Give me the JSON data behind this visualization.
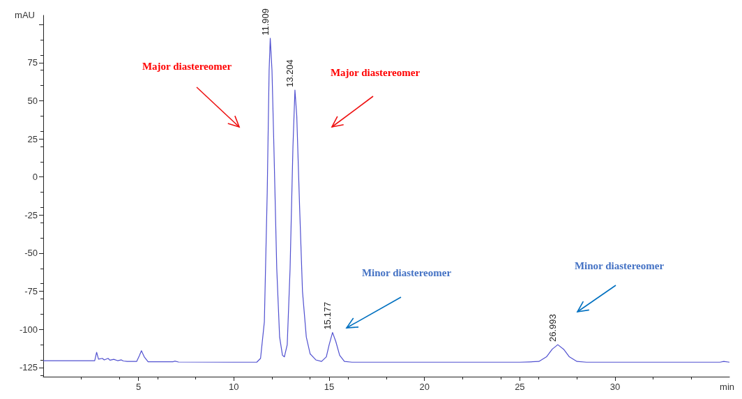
{
  "chart_data": {
    "type": "line",
    "xlabel": "min",
    "ylabel": "mAU",
    "xlim": [
      0,
      36
    ],
    "xticks": [
      5,
      10,
      15,
      20,
      25,
      30
    ],
    "ylim": [
      -131,
      106
    ],
    "yticks": [
      -125,
      -100,
      -75,
      -50,
      -25,
      0,
      25,
      50,
      75,
      {
        "value": 100,
        "label": null
      }
    ],
    "grid": false,
    "marker": "none",
    "line_style": "solid",
    "series": [
      {
        "color": "#5050d0",
        "x": [
          0,
          2.7,
          2.8,
          2.9,
          3.1,
          3.2,
          3.4,
          3.5,
          3.7,
          3.9,
          4.1,
          4.2,
          4.4,
          4.9,
          5.05,
          5.15,
          5.3,
          5.5,
          6.8,
          6.9,
          7.1,
          10,
          11.2,
          11.4,
          11.6,
          11.75,
          11.85,
          11.909,
          12.0,
          12.1,
          12.25,
          12.4,
          12.55,
          12.65,
          12.8,
          12.95,
          13.1,
          13.204,
          13.3,
          13.45,
          13.6,
          13.8,
          14.0,
          14.3,
          14.6,
          14.85,
          15.0,
          15.177,
          15.35,
          15.55,
          15.8,
          16.2,
          25,
          25.5,
          26.0,
          26.4,
          26.7,
          26.993,
          27.3,
          27.6,
          28,
          28.5,
          35.5,
          35.7,
          36
        ],
        "values": [
          -120.5,
          -120.5,
          -115,
          -119.5,
          -119,
          -120,
          -119,
          -120.2,
          -119.6,
          -120.5,
          -120,
          -120.7,
          -121,
          -121,
          -117,
          -114,
          -118,
          -121.2,
          -121.2,
          -120.8,
          -121.4,
          -121.5,
          -121.5,
          -119,
          -95,
          -10,
          70,
          91,
          70,
          20,
          -60,
          -105,
          -117,
          -118,
          -110,
          -60,
          20,
          57,
          40,
          -20,
          -75,
          -105,
          -116,
          -120,
          -121,
          -118,
          -110,
          -102,
          -108,
          -117,
          -121,
          -121.5,
          -121.5,
          -121.3,
          -121,
          -118,
          -113,
          -110,
          -113,
          -118,
          -121,
          -121.5,
          -121.5,
          -121,
          -121.5
        ]
      }
    ],
    "annotations": [
      {
        "text": "11.909",
        "x": 11.909,
        "y": 91
      },
      {
        "text": "13.204",
        "x": 13.204,
        "y": 57
      },
      {
        "text": "15.177",
        "x": 15.177,
        "y": -102
      },
      {
        "text": "26.993",
        "x": 26.993,
        "y": -110
      },
      "Major diastereomer",
      "Major diastereomer",
      "Minor diastereomer",
      "Minor diastereomer"
    ]
  }
}
